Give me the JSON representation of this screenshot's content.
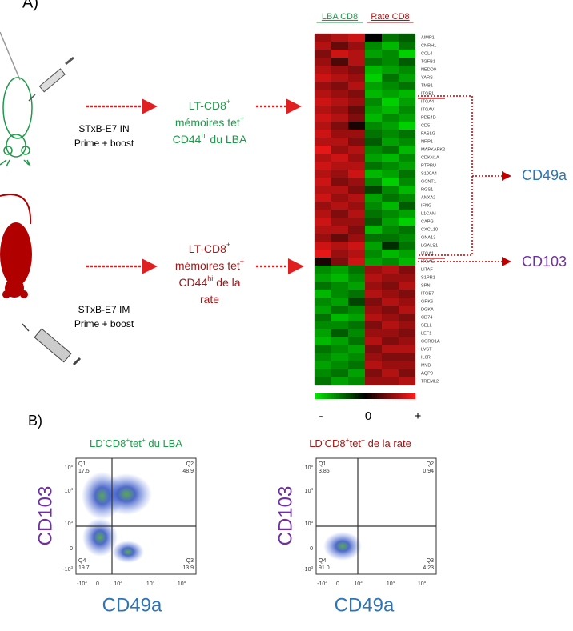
{
  "panel_a": {
    "label": "A)",
    "heatmap": {
      "column_groups": [
        "LBA CD8",
        "Rate CD8"
      ],
      "genes": [
        "AIMP1",
        "CNRH1",
        "CCL4",
        "TGFB1",
        "NEDD9",
        "YARS",
        "TMB1",
        "ITGB1",
        "ITGA4",
        "ITGAV",
        "PDE4D",
        "CD5",
        "FASLG",
        "NRP1",
        "MAPKAPK2",
        "CDKN1A",
        "PTPRU",
        "S100A4",
        "GCNT1",
        "RGS1",
        "ANXA2",
        "IFNG",
        "L1CAM",
        "CAPG",
        "CXCL10",
        "GNA13",
        "LGALS1",
        "ITGA1",
        "ITGAE",
        "LITAF",
        "S1PR1",
        "SPN",
        "ITGB7",
        "GRK6",
        "DGKA",
        "CD74",
        "SELL",
        "LEF1",
        "CORO1A",
        "LVST",
        "IL6R",
        "MYB",
        "AQP9",
        "TREML2"
      ],
      "values": [
        [
          0.6,
          0.7,
          0.8,
          0.0,
          -0.5,
          -0.4
        ],
        [
          0.7,
          0.4,
          0.6,
          -0.6,
          -0.8,
          -0.5
        ],
        [
          0.5,
          0.8,
          0.7,
          -0.7,
          -0.6,
          -0.9
        ],
        [
          0.6,
          0.3,
          0.7,
          -0.5,
          -0.6,
          -0.4
        ],
        [
          0.7,
          0.6,
          0.5,
          -0.8,
          -0.7,
          -0.6
        ],
        [
          0.8,
          0.7,
          0.6,
          -0.9,
          -0.5,
          -0.7
        ],
        [
          0.6,
          0.5,
          0.7,
          -0.7,
          -0.6,
          -0.5
        ],
        [
          0.7,
          0.6,
          0.5,
          -0.8,
          -0.7,
          -0.8
        ],
        [
          0.8,
          0.7,
          0.6,
          -0.6,
          -0.9,
          -0.7
        ],
        [
          0.7,
          0.6,
          0.4,
          -0.7,
          -0.8,
          -0.6
        ],
        [
          0.8,
          0.7,
          0.5,
          -0.8,
          -0.6,
          -0.7
        ],
        [
          0.7,
          0.5,
          0.1,
          -0.6,
          -0.7,
          -0.9
        ],
        [
          0.8,
          0.6,
          0.6,
          -0.5,
          -0.6,
          -0.5
        ],
        [
          0.7,
          0.7,
          0.5,
          -0.4,
          -0.7,
          -0.6
        ],
        [
          0.9,
          0.6,
          0.7,
          -0.6,
          -0.5,
          -0.8
        ],
        [
          0.7,
          0.8,
          0.6,
          -0.7,
          -0.8,
          -0.6
        ],
        [
          0.8,
          0.7,
          0.7,
          -0.5,
          -0.6,
          -0.7
        ],
        [
          0.7,
          0.6,
          0.8,
          -0.8,
          -0.7,
          -0.5
        ],
        [
          0.8,
          0.5,
          0.6,
          -0.6,
          -0.9,
          -0.6
        ],
        [
          0.7,
          0.7,
          0.5,
          -0.3,
          -0.6,
          -0.8
        ],
        [
          0.8,
          0.6,
          0.7,
          -0.7,
          -0.5,
          -0.6
        ],
        [
          0.6,
          0.7,
          0.6,
          -0.6,
          -0.8,
          -0.4
        ],
        [
          0.7,
          0.5,
          0.7,
          -0.5,
          -0.6,
          -0.7
        ],
        [
          0.8,
          0.6,
          0.6,
          -0.4,
          -0.7,
          -0.9
        ],
        [
          0.7,
          0.7,
          0.5,
          -0.8,
          -0.6,
          -0.5
        ],
        [
          0.6,
          0.4,
          0.6,
          -0.5,
          -0.5,
          -0.6
        ],
        [
          0.8,
          0.7,
          0.8,
          -0.7,
          -0.2,
          -0.5
        ],
        [
          0.9,
          0.6,
          0.7,
          -0.6,
          -0.8,
          -0.7
        ],
        [
          0.1,
          0.5,
          0.8,
          -0.7,
          -0.6,
          -0.8
        ],
        [
          -0.6,
          -0.7,
          -0.5,
          0.6,
          0.7,
          0.5
        ],
        [
          -0.7,
          -0.8,
          -0.6,
          0.7,
          0.6,
          0.6
        ],
        [
          -0.5,
          -0.6,
          -0.7,
          0.6,
          0.5,
          0.7
        ],
        [
          -0.8,
          -0.6,
          -0.5,
          0.7,
          0.6,
          0.5
        ],
        [
          -0.6,
          -0.7,
          -0.3,
          0.5,
          0.7,
          0.6
        ],
        [
          -0.7,
          -0.5,
          -0.6,
          0.6,
          0.5,
          0.7
        ],
        [
          -0.5,
          -0.8,
          -0.7,
          0.7,
          0.6,
          0.5
        ],
        [
          -0.6,
          -0.6,
          -0.5,
          0.5,
          0.7,
          0.6
        ],
        [
          -0.7,
          -0.4,
          -0.6,
          0.6,
          0.6,
          0.5
        ],
        [
          -0.8,
          -0.7,
          -0.5,
          0.7,
          0.5,
          0.6
        ],
        [
          -0.5,
          -0.6,
          -0.7,
          0.5,
          0.7,
          0.7
        ],
        [
          -0.6,
          -0.7,
          -0.6,
          0.6,
          0.5,
          0.5
        ],
        [
          -0.7,
          -0.6,
          -0.5,
          0.7,
          0.6,
          0.6
        ],
        [
          -0.6,
          -0.5,
          -0.7,
          0.5,
          0.7,
          0.5
        ],
        [
          -0.5,
          -0.7,
          -0.6,
          0.6,
          0.6,
          0.7
        ]
      ],
      "scale_labels": [
        "-",
        "0",
        "+"
      ]
    },
    "mouse_in": {
      "route": "STxB-E7 IN",
      "regimen": "Prime + boost"
    },
    "mouse_im": {
      "route": "STxB-E7 IM",
      "regimen": "Prime + boost"
    },
    "population_lba": [
      [
        "LT-CD8",
        "+"
      ],
      [
        "mémoires tet",
        "+"
      ],
      [
        "CD44",
        "hi",
        " du LBA"
      ]
    ],
    "population_rate": [
      [
        "LT-CD8",
        "+"
      ],
      [
        "mémoires tet",
        "+"
      ],
      [
        "CD44",
        "hi",
        " de la"
      ],
      [
        "rate"
      ]
    ],
    "marker_cd49a": "CD49a",
    "marker_cd103": "CD103"
  },
  "panel_b": {
    "label": "B)",
    "plots": [
      {
        "title": [
          "LD",
          "-",
          "CD8",
          "+",
          "tet",
          "+",
          " du LBA"
        ],
        "y_label": "CD103",
        "x_label": "CD49a",
        "quadrants": [
          [
            "Q1",
            "17.5"
          ],
          [
            "Q2",
            "48.9"
          ],
          [
            "Q3",
            "13.9"
          ],
          [
            "Q4",
            "19.7"
          ]
        ]
      },
      {
        "title": [
          "LD",
          "-",
          "CD8",
          "+",
          "tet",
          "+",
          " de la rate"
        ],
        "y_label": "CD103",
        "x_label": "CD49a",
        "quadrants": [
          [
            "Q1",
            "3.85"
          ],
          [
            "Q2",
            "0.94"
          ],
          [
            "Q3",
            "4.23"
          ],
          [
            "Q4",
            "91.0"
          ]
        ]
      }
    ],
    "y_ticks": [
      [
        "10",
        "5"
      ],
      [
        "10",
        "4"
      ],
      [
        "10",
        "3"
      ],
      [
        "0"
      ],
      [
        "-10",
        "3"
      ]
    ],
    "x_ticks": [
      [
        "-10",
        "3"
      ],
      [
        "0"
      ],
      [
        "10",
        "3"
      ],
      [
        "10",
        "4"
      ],
      [
        "10",
        "5"
      ]
    ]
  }
}
